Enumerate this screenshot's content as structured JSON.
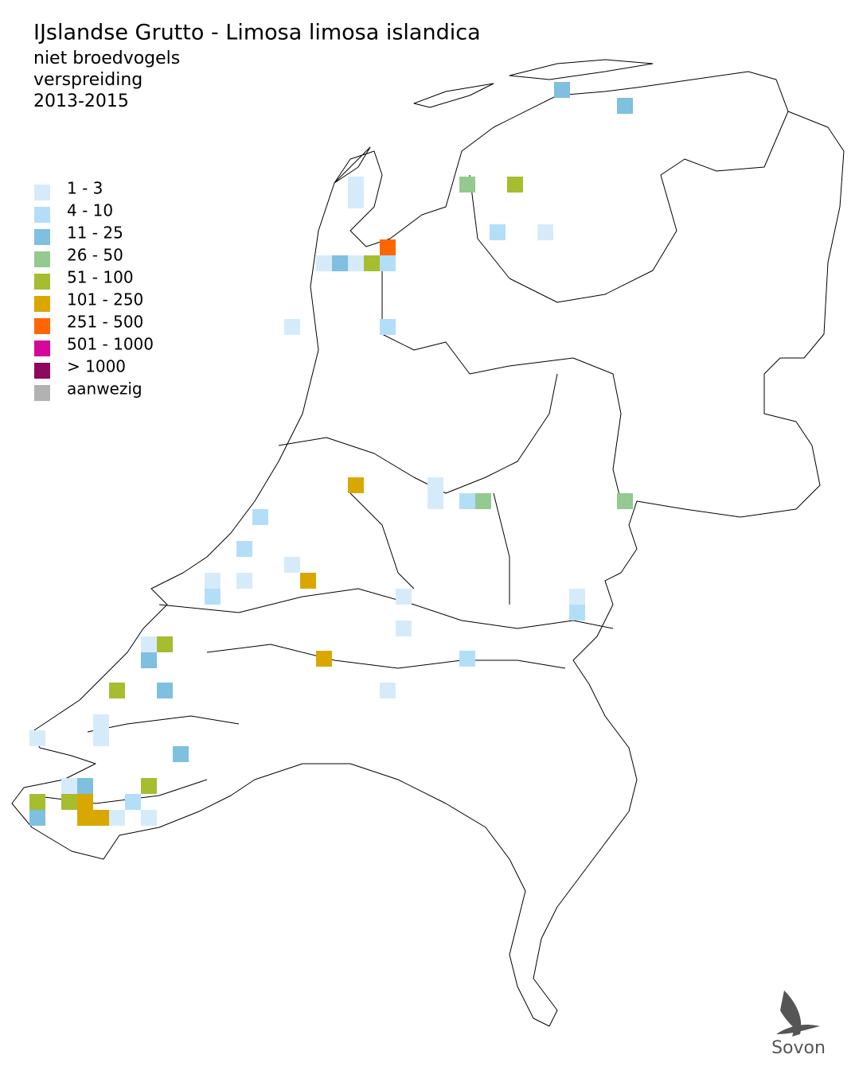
{
  "header": {
    "title": "IJslandse Grutto - Limosa limosa islandica",
    "lines": [
      "niet broedvogels",
      "verspreiding",
      "2013-2015"
    ]
  },
  "legend": [
    {
      "label": "1 - 3",
      "color": "#d6ebfa"
    },
    {
      "label": "4 - 10",
      "color": "#b3def7"
    },
    {
      "label": "11 - 25",
      "color": "#7fbfdf"
    },
    {
      "label": "26 - 50",
      "color": "#94c98f"
    },
    {
      "label": "51 - 100",
      "color": "#a6bd2f"
    },
    {
      "label": "101 - 250",
      "color": "#d9a800"
    },
    {
      "label": "251 - 500",
      "color": "#ff6600"
    },
    {
      "label": "501 - 1000",
      "color": "#d4089a"
    },
    {
      "label": "> 1000",
      "color": "#8c0a5e"
    },
    {
      "label": "aanwezig",
      "color": "#b2b2b2"
    }
  ],
  "logo": "Sovon"
}
